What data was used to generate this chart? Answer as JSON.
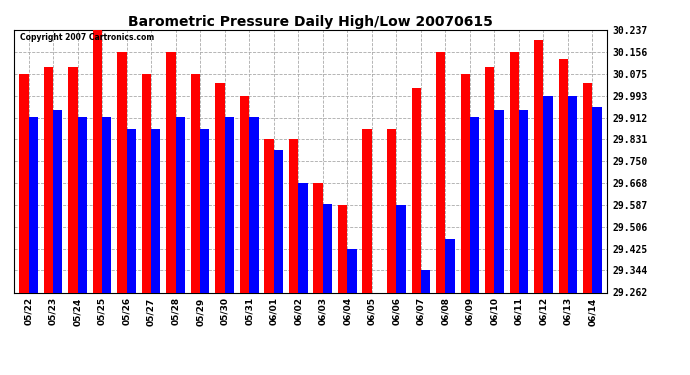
{
  "title": "Barometric Pressure Daily High/Low 20070615",
  "copyright": "Copyright 2007 Cartronics.com",
  "dates": [
    "05/22",
    "05/23",
    "05/24",
    "05/25",
    "05/26",
    "05/27",
    "05/28",
    "05/29",
    "05/30",
    "05/31",
    "06/01",
    "06/02",
    "06/03",
    "06/04",
    "06/05",
    "06/06",
    "06/07",
    "06/08",
    "06/09",
    "06/10",
    "06/11",
    "06/12",
    "06/13",
    "06/14"
  ],
  "highs": [
    30.075,
    30.1,
    30.1,
    30.237,
    30.156,
    30.075,
    30.156,
    30.075,
    30.04,
    29.993,
    29.831,
    29.831,
    29.668,
    29.587,
    29.868,
    29.868,
    30.02,
    30.156,
    30.075,
    30.1,
    30.156,
    30.2,
    30.13,
    30.04
  ],
  "lows": [
    29.912,
    29.94,
    29.912,
    29.912,
    29.868,
    29.868,
    29.912,
    29.868,
    29.912,
    29.912,
    29.79,
    29.668,
    29.59,
    29.425,
    29.262,
    29.587,
    29.344,
    29.462,
    29.912,
    29.94,
    29.94,
    29.993,
    29.993,
    29.95
  ],
  "high_color": "#ff0000",
  "low_color": "#0000ff",
  "background_color": "#ffffff",
  "grid_color": "#aaaaaa",
  "title_fontsize": 10,
  "ylabel_fontsize": 7,
  "xlabel_fontsize": 6.5,
  "ymin": 29.262,
  "ymax": 30.237,
  "yticks": [
    29.262,
    29.344,
    29.425,
    29.506,
    29.587,
    29.668,
    29.75,
    29.831,
    29.912,
    29.993,
    30.075,
    30.156,
    30.237
  ]
}
